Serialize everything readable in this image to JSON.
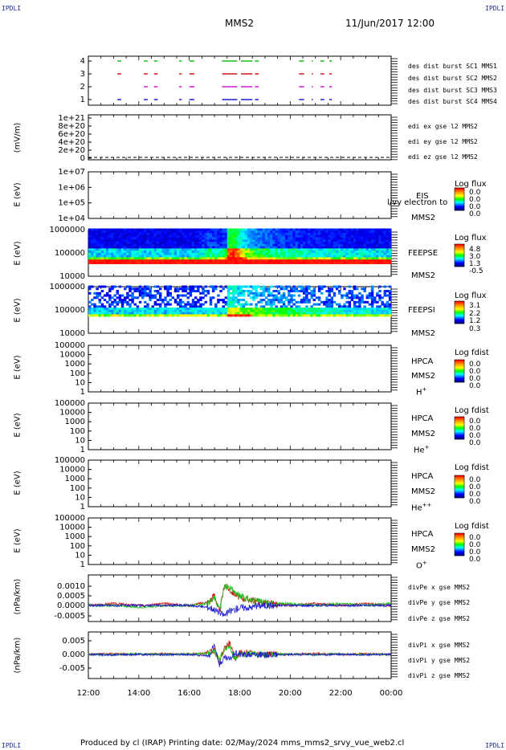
{
  "corner_mark": "IPDLI",
  "header": {
    "title": "MMS2",
    "datetime": "11/Jun/2017 12:00"
  },
  "footer": "Produced by cl (IRAP)   Printing date: 02/May/2024   mms_mms2_srvy_vue_web2.cl",
  "x_ticks": [
    "12:00",
    "14:00",
    "16:00",
    "18:00",
    "20:00",
    "22:00",
    "00:00"
  ],
  "panels": {
    "burst": {
      "yticks": [
        "4",
        "3",
        "2",
        "1"
      ],
      "legend": [
        {
          "text": "des dist burst SC1 MMS1",
          "color": "#1a1ad0"
        },
        {
          "text": "des dist burst SC2 MMS2",
          "color": "#d018d0"
        },
        {
          "text": "des dist burst SC3 MMS3",
          "color": "#d01818"
        },
        {
          "text": "des dist burst SC4 MMS4",
          "color": "#18c018"
        }
      ]
    },
    "edi": {
      "ylabel": "(mV/m)",
      "yticks": [
        "1e+21",
        "8e+20",
        "6e+20",
        "4e+20",
        "2e+20",
        "0"
      ],
      "legend": [
        {
          "text": "edi ex gse l2 MMS2",
          "color": "#d01818"
        },
        {
          "text": "edi ey gse l2 MMS2",
          "color": "#18c018"
        },
        {
          "text": "edi ez gse l2 MMS2",
          "color": "#1a1ad0"
        }
      ]
    },
    "eis": {
      "ylabel": "E (eV)",
      "yticks": [
        "1e+07",
        "1e+06",
        "1e+05",
        "1e+04"
      ],
      "label1": "EIS",
      "label2": "MMS2",
      "overlay": "l/vy electron to",
      "cbar_title": "Log flux",
      "cbar_vals": [
        "0.0",
        "0.0",
        "0.0",
        "0.0"
      ]
    },
    "feepse": {
      "ylabel": "E (eV)",
      "yticks": [
        "1000000",
        "100000",
        "10000"
      ],
      "label1": "FEEPSE",
      "label2": "MMS2",
      "cbar_title": "Log flux",
      "cbar_vals": [
        "4.8",
        "3.0",
        "1.3",
        "-0.5"
      ]
    },
    "feepsi": {
      "ylabel": "E (eV)",
      "yticks": [
        "1000000",
        "100000",
        "10000"
      ],
      "label1": "FEEPSI",
      "label2": "MMS2",
      "cbar_title": "Log flux",
      "cbar_vals": [
        "3.1",
        "2.2",
        "1.2",
        "0.3"
      ]
    },
    "hpca_h": {
      "ylabel": "E (eV)",
      "yticks": [
        "100000",
        "10000",
        "1000",
        "100",
        "10",
        "1"
      ],
      "label1": "HPCA",
      "label2": "MMS2",
      "species": "H",
      "charge": "+",
      "cbar_title": "Log fdist",
      "cbar_vals": [
        "0.0",
        "0.0",
        "0.0",
        "0.0"
      ]
    },
    "hpca_he": {
      "ylabel": "E (eV)",
      "yticks": [
        "100000",
        "10000",
        "1000",
        "100",
        "10",
        "1"
      ],
      "label1": "HPCA",
      "label2": "MMS2",
      "species": "He",
      "charge": "+",
      "cbar_title": "Log fdist",
      "cbar_vals": [
        "0.0",
        "0.0",
        "0.0",
        "0.0"
      ]
    },
    "hpca_he2": {
      "ylabel": "E (eV)",
      "yticks": [
        "100000",
        "10000",
        "1000",
        "100",
        "10",
        "1"
      ],
      "label1": "HPCA",
      "label2": "MMS2",
      "species": "He",
      "charge": "++",
      "cbar_title": "Log fdist",
      "cbar_vals": [
        "0.0",
        "0.0",
        "0.0",
        "0.0"
      ]
    },
    "hpca_o": {
      "ylabel": "E (eV)",
      "yticks": [
        "100000",
        "10000",
        "1000",
        "100",
        "10",
        "1"
      ],
      "label1": "HPCA",
      "label2": "MMS2",
      "species": "O",
      "charge": "+",
      "cbar_title": "Log fdist",
      "cbar_vals": [
        "0.0",
        "0.0",
        "0.0",
        "0.0"
      ]
    },
    "divpe": {
      "ylabel": "(nPa/km)",
      "yticks": [
        "0.0010",
        "0.0005",
        "0.0000",
        "-0.0005"
      ],
      "legend": [
        {
          "text": "divPe x gse MMS2",
          "color": "#d01818"
        },
        {
          "text": "divPe y gse MMS2",
          "color": "#18c018"
        },
        {
          "text": "divPe z gse MMS2",
          "color": "#1a1ad0"
        }
      ]
    },
    "divpi": {
      "ylabel": "(nPa/km)",
      "yticks": [
        "0.005",
        "0.000",
        "-0.005"
      ],
      "legend": [
        {
          "text": "divPi x gse MMS2",
          "color": "#d01818"
        },
        {
          "text": "divPi y gse MMS2",
          "color": "#18c018"
        },
        {
          "text": "divPi z gse MMS2",
          "color": "#1a1ad0"
        }
      ]
    }
  },
  "chart_data": [
    {
      "type": "timeline",
      "title": "des dist burst",
      "x_range": [
        "12:00",
        "00:00"
      ],
      "series": [
        {
          "name": "des dist burst SC1 MMS1",
          "y": 1,
          "color": "#1a1ad0",
          "segments": [
            [
              13.15,
              13.3
            ],
            [
              14.2,
              14.35
            ],
            [
              14.6,
              14.75
            ],
            [
              15.6,
              15.7
            ],
            [
              16.0,
              16.2
            ],
            [
              17.3,
              17.9
            ],
            [
              18.05,
              18.5
            ],
            [
              18.6,
              18.75
            ],
            [
              20.35,
              20.55
            ],
            [
              20.85,
              20.9
            ],
            [
              21.2,
              21.35
            ],
            [
              21.55,
              21.65
            ]
          ]
        },
        {
          "name": "des dist burst SC2 MMS2",
          "y": 2,
          "color": "#d018d0",
          "segments": [
            [
              14.2,
              14.35
            ],
            [
              14.6,
              14.75
            ],
            [
              15.6,
              15.7
            ],
            [
              16.0,
              16.2
            ],
            [
              17.3,
              17.9
            ],
            [
              18.05,
              18.5
            ],
            [
              18.6,
              18.75
            ],
            [
              20.35,
              20.55
            ],
            [
              20.85,
              20.9
            ],
            [
              21.2,
              21.35
            ],
            [
              21.55,
              21.65
            ]
          ]
        },
        {
          "name": "des dist burst SC3 MMS3",
          "y": 3,
          "color": "#d01818",
          "segments": [
            [
              13.15,
              13.3
            ],
            [
              14.2,
              14.35
            ],
            [
              14.6,
              14.75
            ],
            [
              15.6,
              15.7
            ],
            [
              16.0,
              16.2
            ],
            [
              17.3,
              17.9
            ],
            [
              18.05,
              18.5
            ],
            [
              18.6,
              18.75
            ],
            [
              20.35,
              20.55
            ],
            [
              20.85,
              20.9
            ],
            [
              21.2,
              21.35
            ],
            [
              21.55,
              21.65
            ]
          ]
        },
        {
          "name": "des dist burst SC4 MMS4",
          "y": 4,
          "color": "#18c018",
          "segments": [
            [
              13.15,
              13.3
            ],
            [
              14.2,
              14.35
            ],
            [
              14.6,
              14.75
            ],
            [
              15.6,
              15.7
            ],
            [
              16.0,
              16.2
            ],
            [
              17.3,
              17.9
            ],
            [
              18.05,
              18.5
            ],
            [
              18.6,
              18.75
            ],
            [
              20.35,
              20.55
            ],
            [
              20.85,
              20.9
            ],
            [
              21.2,
              21.35
            ],
            [
              21.55,
              21.65
            ]
          ]
        }
      ]
    },
    {
      "type": "line",
      "title": "edi e gse l2 MMS2",
      "ylabel": "(mV/m)",
      "ylim": [
        0,
        1e+21
      ],
      "series": [
        {
          "name": "edi ex gse l2 MMS2",
          "values": [
            0,
            0
          ]
        }
      ]
    },
    {
      "type": "heatmap",
      "title": "FEEPSE MMS2",
      "ylabel": "E (eV)",
      "yscale": "log",
      "ylim": [
        10000,
        1000000
      ],
      "colorbar": {
        "label": "Log flux",
        "range": [
          -0.5,
          4.8
        ]
      },
      "features": [
        {
          "x": [
            12.0,
            24.0
          ],
          "energy": [
            35000,
            45000
          ],
          "log_flux": 4.8
        },
        {
          "x": [
            17.4,
            18.2
          ],
          "energy": [
            40000,
            150000
          ],
          "log_flux": 3.8
        }
      ]
    },
    {
      "type": "heatmap",
      "title": "FEEPSI MMS2",
      "ylabel": "E (eV)",
      "yscale": "log",
      "ylim": [
        10000,
        1000000
      ],
      "colorbar": {
        "label": "Log flux",
        "range": [
          0.3,
          3.1
        ]
      },
      "features": [
        {
          "x": [
            12.0,
            24.0
          ],
          "energy": [
            55000,
            70000
          ],
          "log_flux": 1.9
        },
        {
          "x": [
            17.5,
            18.4
          ],
          "energy": [
            50000,
            60000
          ],
          "log_flux": 3.1
        }
      ]
    },
    {
      "type": "line",
      "title": "divPe gse MMS2",
      "ylabel": "(nPa/km)",
      "ylim": [
        -0.0008,
        0.0014
      ],
      "x": [
        12.0,
        13.0,
        14.0,
        15.0,
        16.0,
        16.8,
        17.0,
        17.2,
        17.4,
        17.6,
        17.8,
        18.0,
        18.4,
        18.8,
        19.2,
        20.0,
        21.0,
        22.0,
        23.0,
        24.0
      ],
      "series": [
        {
          "name": "divPe x gse MMS2",
          "values": [
            0.0,
            0.0001,
            0.0,
            0.0001,
            0.0,
            0.0002,
            0.0006,
            -0.0004,
            0.0011,
            0.0008,
            0.0006,
            0.0004,
            0.0003,
            0.0002,
            0.0001,
            0.0,
            0.0001,
            0.0,
            0.0001,
            0.0
          ]
        },
        {
          "name": "divPe y gse MMS2",
          "values": [
            0.0,
            0.0,
            -0.0001,
            0.0,
            0.0,
            0.0001,
            0.0004,
            -0.0002,
            0.001,
            0.0009,
            0.0007,
            0.0005,
            0.0003,
            0.0002,
            0.0001,
            0.0001,
            0.0,
            0.0001,
            0.0,
            0.0001
          ]
        },
        {
          "name": "divPe z gse MMS2",
          "values": [
            0.0,
            0.0,
            0.0,
            0.0,
            0.0,
            -0.0001,
            -0.0002,
            -0.0004,
            -0.0005,
            -0.0003,
            -0.0002,
            -0.0001,
            -0.0001,
            0.0,
            0.0,
            0.0,
            0.0,
            0.0,
            0.0,
            0.0
          ]
        }
      ]
    },
    {
      "type": "line",
      "title": "divPi gse MMS2",
      "ylabel": "(nPa/km)",
      "ylim": [
        -0.008,
        0.008
      ],
      "x": [
        12.0,
        13.0,
        14.0,
        15.0,
        16.0,
        16.8,
        17.0,
        17.2,
        17.4,
        17.6,
        17.8,
        18.0,
        19.0,
        20.0,
        21.0,
        22.0,
        23.0,
        24.0
      ],
      "series": [
        {
          "name": "divPi x gse MMS2",
          "values": [
            0.0,
            0.0005,
            0.0,
            0.0004,
            0.0,
            0.001,
            0.003,
            -0.005,
            0.004,
            0.007,
            -0.003,
            0.001,
            0.0005,
            0.0,
            0.0005,
            0.0,
            0.0004,
            0.0
          ]
        },
        {
          "name": "divPi y gse MMS2",
          "values": [
            0.0,
            0.0,
            0.0003,
            0.0,
            0.0003,
            0.0005,
            0.002,
            -0.003,
            0.003,
            0.005,
            -0.002,
            0.0005,
            0.0,
            0.0003,
            0.0,
            0.0003,
            0.0,
            0.0
          ]
        },
        {
          "name": "divPi z gse MMS2",
          "values": [
            0.0,
            -0.0003,
            0.0,
            -0.0002,
            0.0,
            -0.001,
            0.006,
            -0.006,
            -0.002,
            -0.003,
            0.001,
            0.0,
            -0.0003,
            0.0,
            -0.0002,
            0.0,
            -0.0002,
            0.0
          ]
        }
      ]
    }
  ]
}
